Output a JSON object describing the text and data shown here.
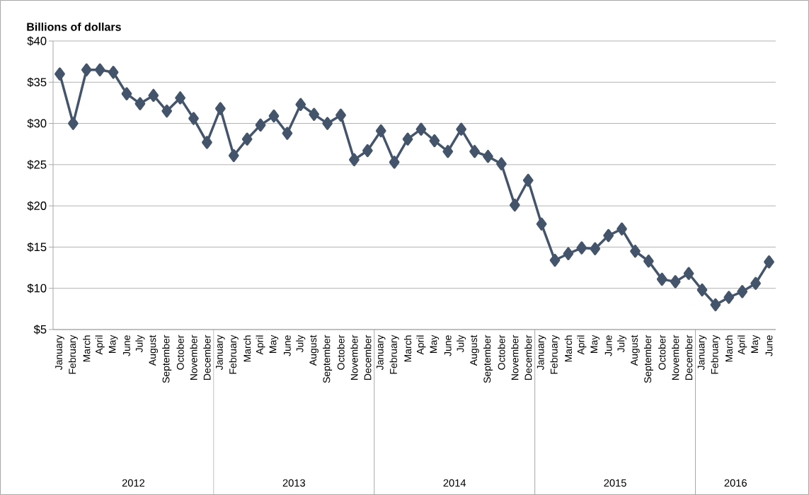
{
  "chart_data": {
    "type": "line",
    "ylabel": "Billions of dollars",
    "categories": [
      "January",
      "February",
      "March",
      "April",
      "May",
      "June",
      "July",
      "August",
      "September",
      "October",
      "November",
      "December",
      "January",
      "February",
      "March",
      "April",
      "May",
      "June",
      "July",
      "August",
      "September",
      "October",
      "November",
      "December",
      "January",
      "February",
      "March",
      "April",
      "May",
      "June",
      "July",
      "August",
      "September",
      "October",
      "November",
      "December",
      "January",
      "February",
      "March",
      "April",
      "May",
      "June",
      "July",
      "August",
      "September",
      "October",
      "November",
      "December",
      "January",
      "February",
      "March",
      "April",
      "May",
      "June"
    ],
    "values": [
      36,
      30,
      36.5,
      36.5,
      36.2,
      33.6,
      32.4,
      33.4,
      31.5,
      33.1,
      30.6,
      27.7,
      31.8,
      26.1,
      28.1,
      29.8,
      30.9,
      28.8,
      32.3,
      31.1,
      30.0,
      31.0,
      25.6,
      26.7,
      29.1,
      25.3,
      28.1,
      29.3,
      27.9,
      26.6,
      29.3,
      26.6,
      26.0,
      25.1,
      20.1,
      23.1,
      17.8,
      13.4,
      14.2,
      14.9,
      14.8,
      16.4,
      17.2,
      14.5,
      13.3,
      11.1,
      10.8,
      11.8,
      9.8,
      8.0,
      8.9,
      9.6,
      10.6,
      13.2
    ],
    "color": "#44546a",
    "ylim": [
      5,
      40
    ],
    "yticks": [
      {
        "value": 5,
        "label": "$5"
      },
      {
        "value": 10,
        "label": "$10"
      },
      {
        "value": 15,
        "label": "$15"
      },
      {
        "value": 20,
        "label": "$20"
      },
      {
        "value": 25,
        "label": "$25"
      },
      {
        "value": 30,
        "label": "$30"
      },
      {
        "value": 35,
        "label": "$35"
      },
      {
        "value": 40,
        "label": "$40"
      }
    ],
    "grid": "y",
    "legend": false,
    "marker": "diamond",
    "line_style": "solid",
    "annotations": [
      "2012",
      "2013",
      "2014",
      "2015",
      "2016"
    ]
  }
}
